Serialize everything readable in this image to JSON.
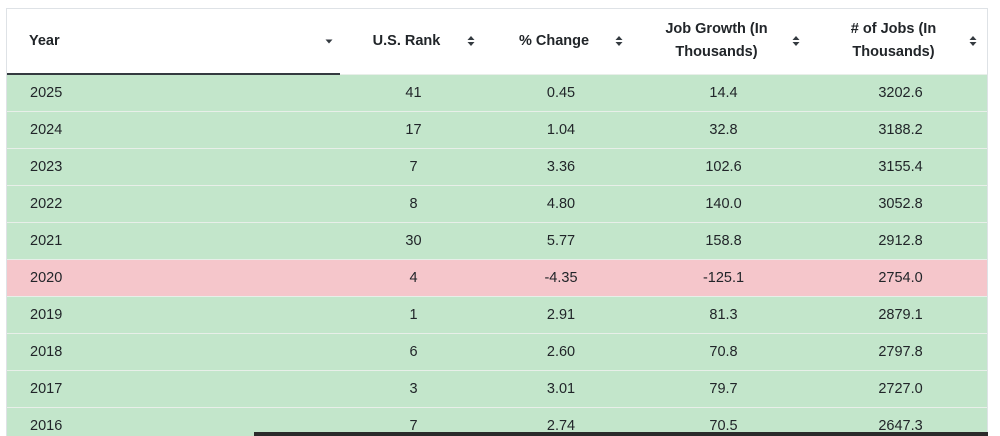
{
  "table": {
    "headers": {
      "year": "Year",
      "rank": "U.S. Rank",
      "change": "% Change",
      "job_growth_line1": "Job Growth (In",
      "job_growth_line2": "Thousands)",
      "jobs_line1": "# of Jobs (In",
      "jobs_line2": "Thousands)"
    },
    "sorted_column": "Year",
    "sort_direction": "descending",
    "colors": {
      "positive_row": "#c3e6cb",
      "negative_row": "#f5c6cb"
    },
    "rows": [
      {
        "year": "2025",
        "rank": "41",
        "change": "0.45",
        "job_growth": "14.4",
        "jobs": "3202.6",
        "status": "pos"
      },
      {
        "year": "2024",
        "rank": "17",
        "change": "1.04",
        "job_growth": "32.8",
        "jobs": "3188.2",
        "status": "pos"
      },
      {
        "year": "2023",
        "rank": "7",
        "change": "3.36",
        "job_growth": "102.6",
        "jobs": "3155.4",
        "status": "pos"
      },
      {
        "year": "2022",
        "rank": "8",
        "change": "4.80",
        "job_growth": "140.0",
        "jobs": "3052.8",
        "status": "pos"
      },
      {
        "year": "2021",
        "rank": "30",
        "change": "5.77",
        "job_growth": "158.8",
        "jobs": "2912.8",
        "status": "pos"
      },
      {
        "year": "2020",
        "rank": "4",
        "change": "-4.35",
        "job_growth": "-125.1",
        "jobs": "2754.0",
        "status": "neg"
      },
      {
        "year": "2019",
        "rank": "1",
        "change": "2.91",
        "job_growth": "81.3",
        "jobs": "2879.1",
        "status": "pos"
      },
      {
        "year": "2018",
        "rank": "6",
        "change": "2.60",
        "job_growth": "70.8",
        "jobs": "2797.8",
        "status": "pos"
      },
      {
        "year": "2017",
        "rank": "3",
        "change": "3.01",
        "job_growth": "79.7",
        "jobs": "2727.0",
        "status": "pos"
      },
      {
        "year": "2016",
        "rank": "7",
        "change": "2.74",
        "job_growth": "70.5",
        "jobs": "2647.3",
        "status": "pos"
      }
    ]
  }
}
